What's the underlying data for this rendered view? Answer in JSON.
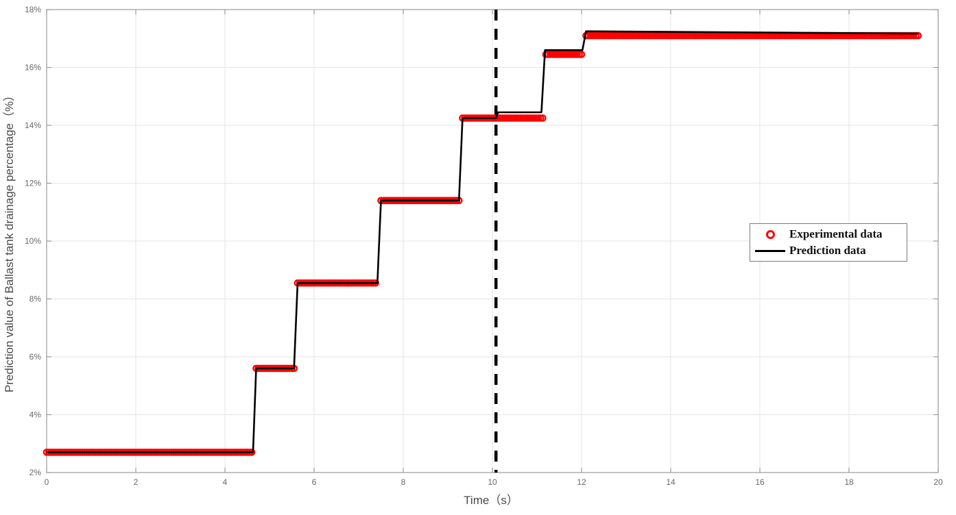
{
  "chart_data": {
    "type": "line",
    "title": "",
    "xlabel": "Time（s）",
    "ylabel": "Prediction value of Ballast tank drainage percentage（%）",
    "xlim": [
      0,
      20
    ],
    "ylim": [
      2,
      18
    ],
    "x_ticks": [
      0,
      2,
      4,
      6,
      8,
      10,
      12,
      14,
      16,
      18,
      20
    ],
    "x_tick_labels": [
      "0",
      "2",
      "4",
      "6",
      "8",
      "10",
      "12",
      "14",
      "16",
      "18",
      "20"
    ],
    "y_ticks": [
      2,
      4,
      6,
      8,
      10,
      12,
      14,
      16,
      18
    ],
    "y_tick_labels": [
      "2%",
      "4%",
      "6%",
      "8%",
      "10%",
      "12%",
      "14%",
      "16%",
      "18%"
    ],
    "grid": true,
    "legend_position": "middle-right",
    "split_line": {
      "x": 10.08,
      "style": "dashed",
      "color": "#000000"
    },
    "series": [
      {
        "name": "Experimental data",
        "type": "scatter",
        "marker": "open-circle",
        "color": "#ff0000",
        "sample_interval_s": 0.05,
        "segments": [
          {
            "t_start": 0.0,
            "t_end": 4.63,
            "value": 2.7
          },
          {
            "t_start": 4.7,
            "t_end": 5.55,
            "value": 5.6
          },
          {
            "t_start": 5.63,
            "t_end": 7.42,
            "value": 8.55
          },
          {
            "t_start": 7.5,
            "t_end": 9.25,
            "value": 11.4
          },
          {
            "t_start": 9.33,
            "t_end": 11.15,
            "value": 14.25
          },
          {
            "t_start": 11.2,
            "t_end": 12.02,
            "value": 16.45
          },
          {
            "t_start": 12.1,
            "t_end": 19.55,
            "value": 17.1
          }
        ]
      },
      {
        "name": "Prediction data",
        "type": "line",
        "color": "#000000",
        "points": [
          [
            0,
            2.7
          ],
          [
            4.63,
            2.7
          ],
          [
            4.7,
            5.6
          ],
          [
            5.55,
            5.6
          ],
          [
            5.63,
            8.55
          ],
          [
            7.42,
            8.55
          ],
          [
            7.5,
            11.4
          ],
          [
            9.25,
            11.4
          ],
          [
            9.33,
            14.25
          ],
          [
            10.08,
            14.25
          ],
          [
            10.13,
            14.45
          ],
          [
            11.1,
            14.45
          ],
          [
            11.18,
            16.6
          ],
          [
            12.02,
            16.6
          ],
          [
            12.1,
            17.25
          ],
          [
            19.55,
            17.17
          ]
        ]
      }
    ]
  },
  "colors": {
    "experimental": "#ff0000",
    "prediction": "#000000",
    "grid": "#e4e4e4",
    "axis": "#9a9a9a",
    "tick_label": "#686868",
    "axis_title": "#4a4a4a",
    "background": "#ffffff"
  }
}
